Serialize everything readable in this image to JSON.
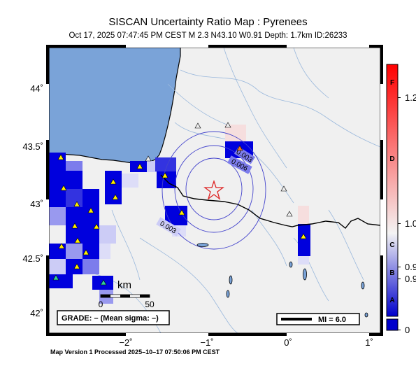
{
  "title": "SISCAN Uncertainty Ratio Map : Pyrenees",
  "subtitle": "Oct 17, 2025 07:47:45 PM CEST   M 2.3    N43.10 W0.91    Depth: 1.7km    ID:26233",
  "footer": "Map Version 1 Processed 2025–10–17 07:50:06 PM CEST",
  "map": {
    "lat_labels": [
      "44˚",
      "43.5˚",
      "43˚",
      "42.5˚",
      "42˚"
    ],
    "lon_labels": [
      "−2˚",
      "−1˚",
      "0˚",
      "1˚"
    ],
    "scale_label": "km",
    "scale_ticks": [
      "0",
      "50"
    ],
    "grade_text": "GRADE: – (Mean sigma: –)",
    "mi_label": "MI = 6.0",
    "contour_labels": [
      "0.003",
      "0.006",
      "0.003"
    ],
    "colors": {
      "sea": "#7aa3d8",
      "land": "#f0f0f0",
      "river": "#9ab8dc",
      "grid_blue": "#0000dd",
      "epicenter": "#dd2222"
    }
  },
  "colorbar": {
    "grade_letters": [
      "F",
      "D",
      "C",
      "B",
      "A"
    ],
    "values": [
      "1.2",
      "1.0",
      "0.9",
      "0.9",
      "0"
    ]
  }
}
